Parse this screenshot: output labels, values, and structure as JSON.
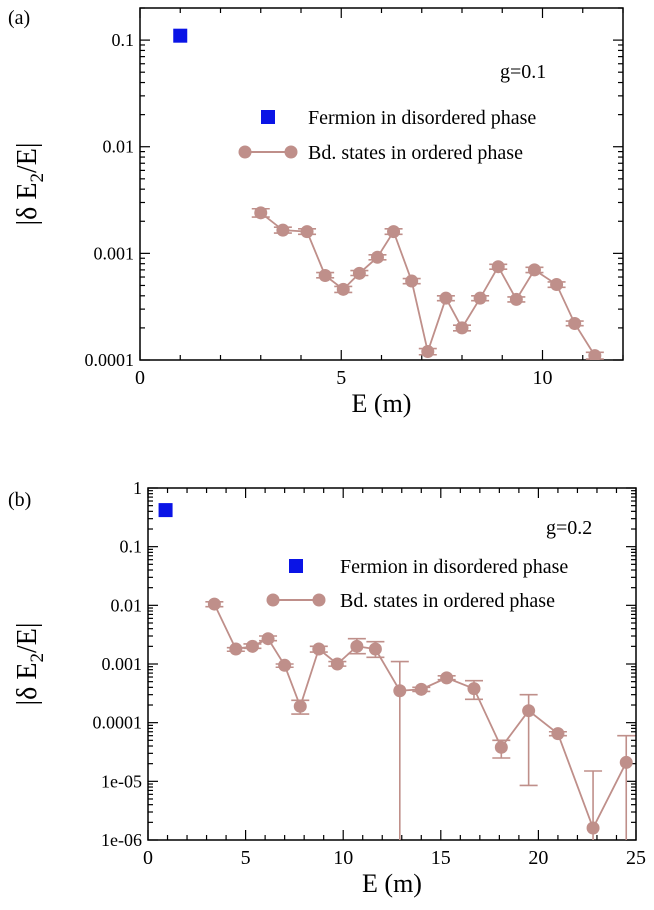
{
  "chart_data": [
    {
      "panel_label": "(a)",
      "type": "line",
      "yscale": "log",
      "xlim": [
        0,
        12
      ],
      "ylim": [
        0.0001,
        0.2
      ],
      "xticks": [
        0,
        5,
        10
      ],
      "xtick_labels": [
        "0",
        "5",
        "10"
      ],
      "yticks": [
        0.0001,
        0.001,
        0.01,
        0.1
      ],
      "ytick_labels": [
        "0.0001",
        "0.001",
        "0.01",
        "0.1"
      ],
      "xlabel": "E (m)",
      "ylabel": "|δ E2/E|",
      "annotation": "g=0.1",
      "legend_placement": "upper-right",
      "grid": false,
      "series": [
        {
          "name": "Fermion in disordered phase",
          "marker": "square",
          "color": "#0a14e6",
          "x": [
            1.0
          ],
          "y": [
            0.11
          ]
        },
        {
          "name": "Bd. states in ordered phase",
          "marker": "circle",
          "color": "#bf8f8a",
          "x": [
            3.0,
            3.55,
            4.15,
            4.6,
            5.05,
            5.45,
            5.9,
            6.3,
            6.75,
            7.15,
            7.6,
            8.0,
            8.45,
            8.9,
            9.35,
            9.8,
            10.35,
            10.8,
            11.3
          ],
          "y": [
            0.0024,
            0.00165,
            0.0016,
            0.00062,
            0.00046,
            0.00065,
            0.00092,
            0.0016,
            0.00055,
            0.00012,
            0.00038,
            0.0002,
            0.00038,
            0.00075,
            0.00037,
            0.0007,
            0.00051,
            0.00022,
            0.00011
          ],
          "err_lo": [
            0.00219,
            0.00155,
            0.00151,
            0.00059,
            0.00043,
            0.00062,
            0.00087,
            0.00151,
            0.00052,
            0.000112,
            0.00036,
            0.000188,
            0.00036,
            0.00071,
            0.00035,
            0.00066,
            0.00048,
            0.00021,
            0.000102
          ],
          "err_hi": [
            0.00262,
            0.00176,
            0.0017,
            0.00066,
            0.00049,
            0.00069,
            0.00097,
            0.0017,
            0.00058,
            0.000128,
            0.0004,
            0.000212,
            0.0004,
            0.00079,
            0.00039,
            0.00074,
            0.00054,
            0.000232,
            0.000118
          ]
        }
      ]
    },
    {
      "panel_label": "(b)",
      "type": "line",
      "yscale": "log",
      "xlim": [
        0,
        25
      ],
      "ylim": [
        1e-06,
        1
      ],
      "xticks": [
        0,
        5,
        10,
        15,
        20,
        25
      ],
      "xtick_labels": [
        "0",
        "5",
        "10",
        "15",
        "20",
        "25"
      ],
      "yticks": [
        1e-06,
        1e-05,
        0.0001,
        0.001,
        0.01,
        0.1,
        1
      ],
      "ytick_labels": [
        "1e-06",
        "1e-05",
        "0.0001",
        "0.001",
        "0.01",
        "0.1",
        "1"
      ],
      "xlabel": "E (m)",
      "ylabel": "|δ E2/E|",
      "annotation": "g=0.2",
      "legend_placement": "upper-right",
      "grid": false,
      "series": [
        {
          "name": "Fermion in disordered phase",
          "marker": "square",
          "color": "#0a14e6",
          "x": [
            0.9
          ],
          "y": [
            0.42
          ]
        },
        {
          "name": "Bd. states in ordered phase",
          "marker": "circle",
          "color": "#bf8f8a",
          "x": [
            3.4,
            4.5,
            5.35,
            6.15,
            7.0,
            7.8,
            8.75,
            9.7,
            10.7,
            11.65,
            12.9,
            14.0,
            15.3,
            16.7,
            18.1,
            19.5,
            21.0,
            22.8,
            24.5
          ],
          "y": [
            0.0105,
            0.0018,
            0.002,
            0.0027,
            0.00095,
            0.00019,
            0.0018,
            0.001,
            0.002,
            0.0018,
            0.00035,
            0.00037,
            0.00058,
            0.00038,
            3.8e-05,
            0.00016,
            6.5e-05,
            1.6e-06,
            2.1e-05
          ],
          "err_lo": [
            0.0095,
            0.00165,
            0.00185,
            0.0025,
            0.00088,
            0.00014,
            0.0016,
            0.00092,
            0.0015,
            0.0013,
            1e-06,
            0.00034,
            0.00054,
            0.00025,
            2.5e-05,
            8.5e-06,
            6e-05,
            1e-06,
            1e-06
          ],
          "err_hi": [
            0.0115,
            0.0019,
            0.0022,
            0.003,
            0.001,
            0.00024,
            0.002,
            0.0011,
            0.0027,
            0.0024,
            0.0011,
            0.0004,
            0.00063,
            0.00052,
            5e-05,
            0.0003,
            7e-05,
            1.5e-05,
            6e-05
          ]
        }
      ]
    }
  ]
}
